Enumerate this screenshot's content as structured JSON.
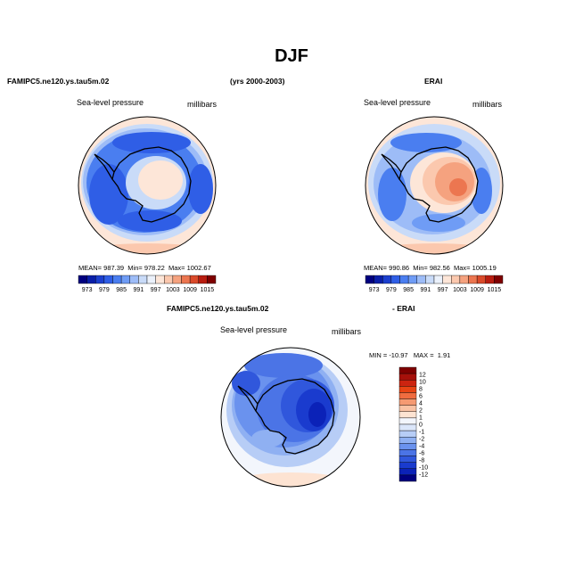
{
  "page": {
    "title": "DJF"
  },
  "header": {
    "model_label": "FAMIPC5.ne120.ys.tau5m.02",
    "years_label": "(yrs 2000-2003)",
    "obs_label": "ERAI"
  },
  "panels": [
    {
      "id": "model",
      "variable": "Sea-level pressure",
      "units": "millibars",
      "stats": {
        "mean_label": "MEAN=",
        "mean": "987.39",
        "min_label": "Min=",
        "min": "978.22",
        "max_label": "Max=",
        "max": "1002.67"
      }
    },
    {
      "id": "obs",
      "variable": "Sea-level pressure",
      "units": "millibars",
      "stats": {
        "mean_label": "MEAN=",
        "mean": "990.86",
        "min_label": "Min=",
        "min": "982.56",
        "max_label": "Max=",
        "max": "1005.19"
      }
    },
    {
      "id": "diff",
      "title_left": "FAMIPC5.ne120.ys.tau5m.02",
      "title_right": "- ERAI",
      "variable": "Sea-level pressure",
      "units": "millibars",
      "stats": {
        "min_label": "MIN =",
        "min": "-10.97",
        "max_label": "MAX =",
        "max": "1.91"
      }
    }
  ],
  "colorbar_abs": {
    "colors": [
      "#00007f",
      "#0a1fa8",
      "#1c3fce",
      "#2f5ee6",
      "#4a7ef0",
      "#6f9cf5",
      "#9dbcf7",
      "#c9dbf8",
      "#ebf1fb",
      "#fde6d8",
      "#fbc8ae",
      "#f5a27f",
      "#ec7650",
      "#da4a2a",
      "#b81d10",
      "#7f0000"
    ],
    "labels": [
      "973",
      "979",
      "985",
      "991",
      "997",
      "1003",
      "1009",
      "1015"
    ]
  },
  "colorbar_diff": {
    "colors_top_to_bottom": [
      "#7f0000",
      "#a6100a",
      "#cc2410",
      "#e84414",
      "#f06c40",
      "#f59a72",
      "#f9c2a4",
      "#fde3d2",
      "#f3f6fc",
      "#dbe6fa",
      "#b7cdf6",
      "#8fb0f2",
      "#6a92ee",
      "#4b74e6",
      "#3057dc",
      "#1a3bce",
      "#0b22b8",
      "#00007f"
    ],
    "labels_top_to_bottom": [
      "12",
      "10",
      "8",
      "6",
      "4",
      "2",
      "1",
      "0",
      "-1",
      "-2",
      "-4",
      "-6",
      "-8",
      "-10",
      "-12"
    ]
  },
  "map_colors": {
    "deep_blue": "#2f5ee6",
    "mid_blue": "#4a7ef0",
    "light_blue": "#9dbcf7",
    "pale_blue": "#c9dbf8",
    "pale_peach": "#fde6d8",
    "peach": "#fbc8ae",
    "orange": "#f5a27f",
    "red_orange": "#ec7650"
  }
}
